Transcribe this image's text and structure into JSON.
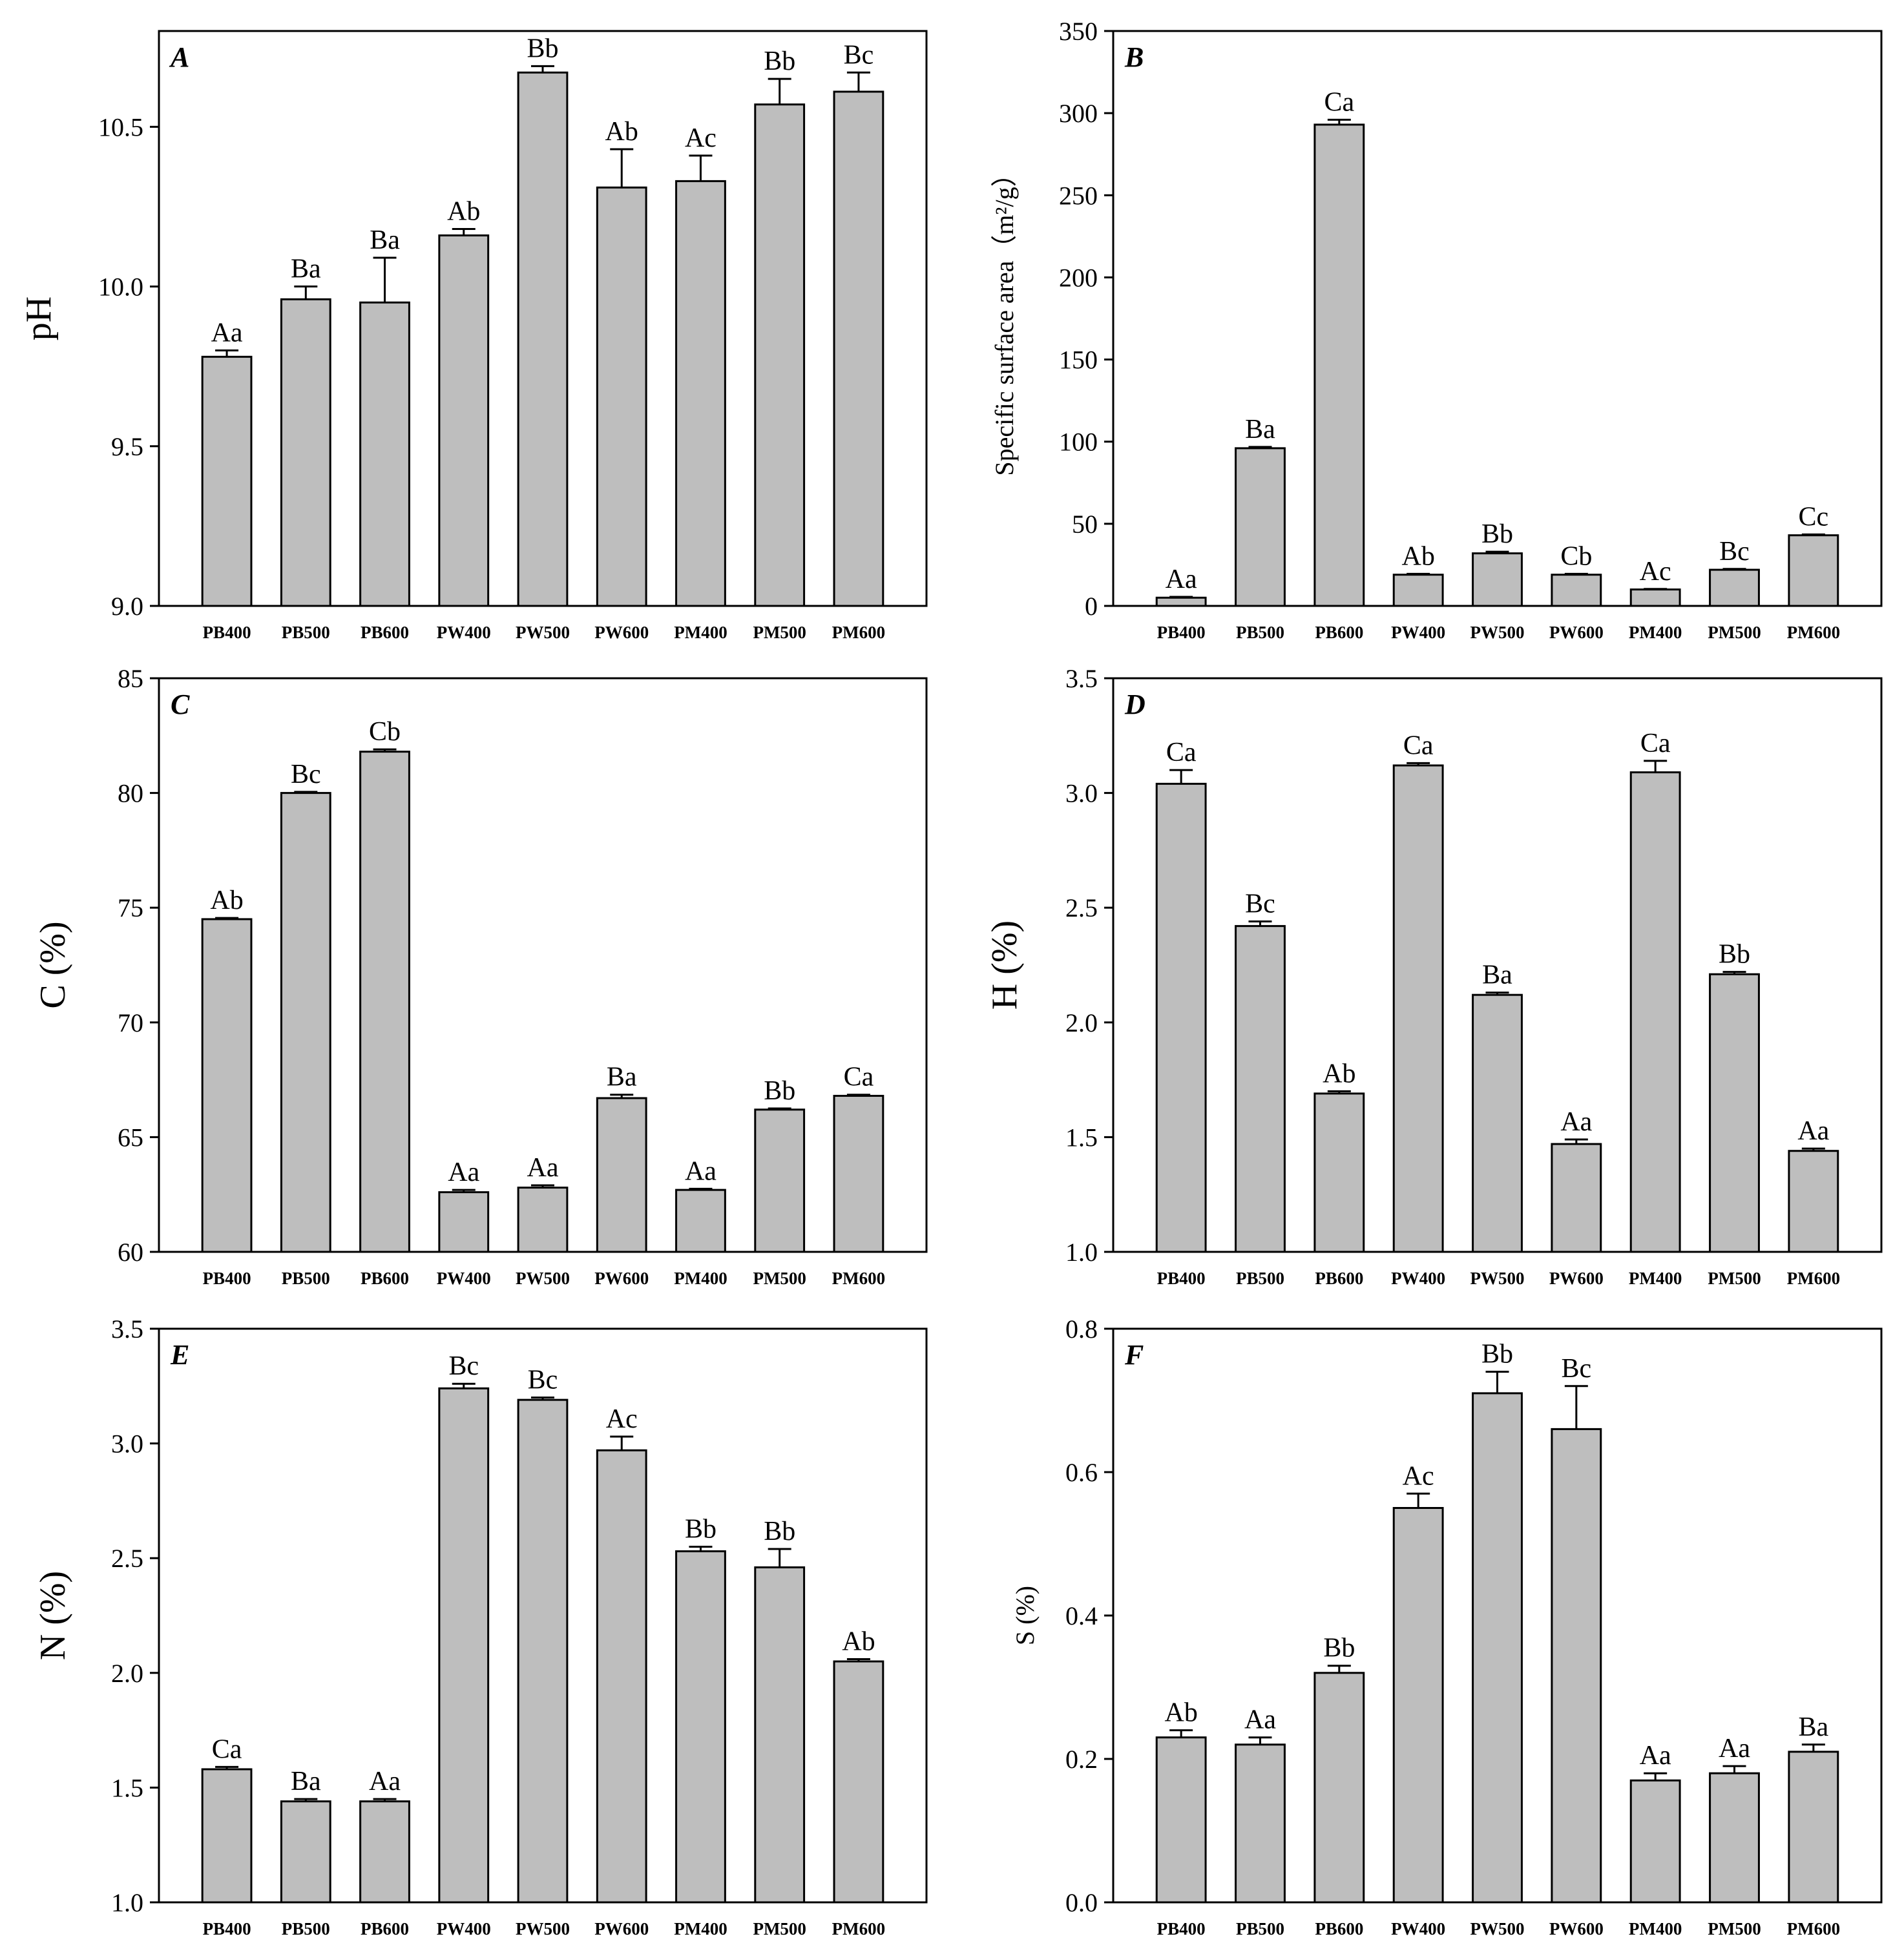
{
  "chart_data": [
    {
      "type": "bar",
      "panel": "A",
      "ylabel": "pH",
      "ylim": [
        9.0,
        10.8
      ],
      "yticks": [
        "9.0",
        "9.5",
        "10.0",
        "10.5"
      ],
      "categories": [
        "PB400",
        "PB500",
        "PB600",
        "PW400",
        "PW500",
        "PW600",
        "PM400",
        "PM500",
        "PM600"
      ],
      "values": [
        9.78,
        9.96,
        9.95,
        10.16,
        10.67,
        10.31,
        10.33,
        10.57,
        10.61
      ],
      "errors": [
        0.02,
        0.04,
        0.14,
        0.02,
        0.02,
        0.12,
        0.08,
        0.08,
        0.06
      ],
      "labels": [
        "Aa",
        "Ba",
        "Ba",
        "Ab",
        "Bb",
        "Ab",
        "Ac",
        "Bb",
        "Bc"
      ]
    },
    {
      "type": "bar",
      "panel": "B",
      "ylabel": "Specific surface area（m²/g）",
      "ylim": [
        0,
        350
      ],
      "yticks": [
        "0",
        "50",
        "100",
        "150",
        "200",
        "250",
        "300",
        "350"
      ],
      "categories": [
        "PB400",
        "PB500",
        "PB600",
        "PW400",
        "PW500",
        "PW600",
        "PM400",
        "PM500",
        "PM600"
      ],
      "values": [
        5,
        96,
        293,
        19,
        32,
        19,
        10,
        22,
        43
      ],
      "errors": [
        0.5,
        0.8,
        3,
        0.5,
        1,
        0.5,
        0.3,
        0.5,
        0.5
      ],
      "labels": [
        "Aa",
        "Ba",
        "Ca",
        "Ab",
        "Bb",
        "Cb",
        "Ac",
        "Bc",
        "Cc"
      ]
    },
    {
      "type": "bar",
      "panel": "C",
      "ylabel": "C (%)",
      "ylim": [
        60,
        85
      ],
      "yticks": [
        "60",
        "65",
        "70",
        "75",
        "80",
        "85"
      ],
      "categories": [
        "PB400",
        "PB500",
        "PB600",
        "PW400",
        "PW500",
        "PW600",
        "PM400",
        "PM500",
        "PM600"
      ],
      "values": [
        74.5,
        80.0,
        81.8,
        62.6,
        62.8,
        66.7,
        62.7,
        66.2,
        66.8
      ],
      "errors": [
        0.05,
        0.05,
        0.1,
        0.1,
        0.1,
        0.15,
        0.05,
        0.05,
        0.05
      ],
      "labels": [
        "Ab",
        "Bc",
        "Cb",
        "Aa",
        "Aa",
        "Ba",
        "Aa",
        "Bb",
        "Ca"
      ]
    },
    {
      "type": "bar",
      "panel": "D",
      "ylabel": "H (%)",
      "ylim": [
        1.0,
        3.5
      ],
      "yticks": [
        "1.0",
        "1.5",
        "2.0",
        "2.5",
        "3.0",
        "3.5"
      ],
      "categories": [
        "PB400",
        "PB500",
        "PB600",
        "PW400",
        "PW500",
        "PW600",
        "PM400",
        "PM500",
        "PM600"
      ],
      "values": [
        3.04,
        2.42,
        1.69,
        3.12,
        2.12,
        1.47,
        3.09,
        2.21,
        1.44
      ],
      "errors": [
        0.06,
        0.02,
        0.01,
        0.01,
        0.01,
        0.02,
        0.05,
        0.01,
        0.01
      ],
      "labels": [
        "Ca",
        "Bc",
        "Ab",
        "Ca",
        "Ba",
        "Aa",
        "Ca",
        "Bb",
        "Aa"
      ]
    },
    {
      "type": "bar",
      "panel": "E",
      "ylabel": "N (%)",
      "ylim": [
        1.0,
        3.5
      ],
      "yticks": [
        "1.0",
        "1.5",
        "2.0",
        "2.5",
        "3.0",
        "3.5"
      ],
      "categories": [
        "PB400",
        "PB500",
        "PB600",
        "PW400",
        "PW500",
        "PW600",
        "PM400",
        "PM500",
        "PM600"
      ],
      "values": [
        1.58,
        1.44,
        1.44,
        3.24,
        3.19,
        2.97,
        2.53,
        2.46,
        2.05
      ],
      "errors": [
        0.01,
        0.01,
        0.01,
        0.02,
        0.01,
        0.06,
        0.02,
        0.08,
        0.01
      ],
      "labels": [
        "Ca",
        "Ba",
        "Aa",
        "Bc",
        "Bc",
        "Ac",
        "Bb",
        "Bb",
        "Ab"
      ]
    },
    {
      "type": "bar",
      "panel": "F",
      "ylabel": "S (%)",
      "ylim": [
        0.0,
        0.8
      ],
      "yticks": [
        "0.0",
        "0.2",
        "0.4",
        "0.6",
        "0.8"
      ],
      "categories": [
        "PB400",
        "PB500",
        "PB600",
        "PW400",
        "PW500",
        "PW600",
        "PM400",
        "PM500",
        "PM600"
      ],
      "values": [
        0.23,
        0.22,
        0.32,
        0.55,
        0.71,
        0.66,
        0.17,
        0.18,
        0.21
      ],
      "errors": [
        0.01,
        0.01,
        0.01,
        0.02,
        0.03,
        0.06,
        0.01,
        0.01,
        0.01
      ],
      "labels": [
        "Ab",
        "Aa",
        "Bb",
        "Ac",
        "Bb",
        "Bc",
        "Aa",
        "Aa",
        "Ba"
      ]
    }
  ],
  "colors": {
    "bar_fill": "#bebebe",
    "stroke": "#000000",
    "background": "#ffffff"
  }
}
